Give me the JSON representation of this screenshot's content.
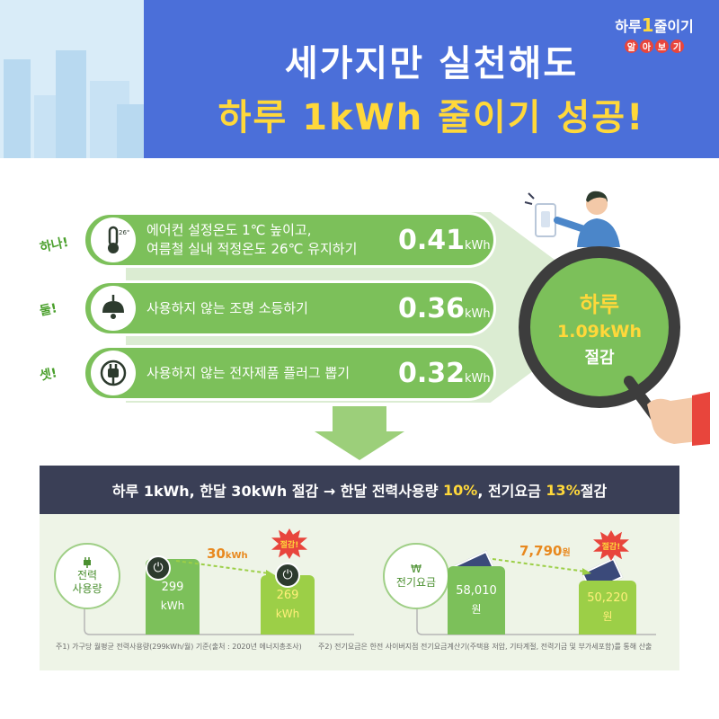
{
  "header": {
    "title_line1": "세가지만 실천해도",
    "title_line2": "하루 1kWh 줄이기 성공!",
    "logo": {
      "text_a": "하루",
      "text_one": "1",
      "text_b": "줄이기",
      "sub": [
        "알",
        "아",
        "보",
        "기"
      ]
    }
  },
  "tips": [
    {
      "ordinal": "하나!",
      "icon": "thermometer-icon",
      "icon_label": "26℃",
      "text_line1": "에어컨 설정온도 1℃ 높이고,",
      "text_line2": "여름철 실내 적정온도 26℃ 유지하기",
      "value": "0.41",
      "unit": "kWh"
    },
    {
      "ordinal": "둘!",
      "icon": "lamp-icon",
      "text_line1": "사용하지 않는 조명 소등하기",
      "text_line2": "",
      "value": "0.36",
      "unit": "kWh"
    },
    {
      "ordinal": "셋!",
      "icon": "plug-icon",
      "text_line1": "사용하지 않는 전자제품 플러그 뽑기",
      "text_line2": "",
      "value": "0.32",
      "unit": "kWh"
    }
  ],
  "magnifier": {
    "line1": "하루",
    "line2": "1.09kWh",
    "line3": "절감"
  },
  "summary": {
    "part1": "하루 1kWh, 한달 30kWh 절감 → 한달 전력사용량 ",
    "hl1": "10%",
    "part2": ", 전기요금 ",
    "hl2": "13%",
    "part3": " 절감"
  },
  "comparison": {
    "power": {
      "label_line1": "전력",
      "label_line2": "사용량",
      "icon": "plug-icon",
      "before": {
        "value": "299",
        "unit": "kWh"
      },
      "after": {
        "value": "269",
        "unit": "kWh"
      },
      "diff": "30",
      "diff_unit": "kWh",
      "burst": "절감!"
    },
    "bill": {
      "label": "전기요금",
      "icon": "won-icon",
      "icon_glyph": "₩",
      "before": {
        "value": "58,010",
        "unit": "원"
      },
      "after": {
        "value": "50,220",
        "unit": "원"
      },
      "diff": "7,790",
      "diff_unit": "원",
      "burst": "절감!"
    }
  },
  "footnotes": {
    "note1": "주1) 가구당 월평균 전력사용량(299kWh/월) 기준(출처 : 2020년 에너지총조사)",
    "note2": "주2) 전기요금은 한전 사이버지점 전기요금계산기(주택용 저압, 기타계절, 전력기금 및 부가세포함)를 통해 산출"
  },
  "colors": {
    "banner": "#4b6fd9",
    "green": "#7cc05a",
    "yellow": "#ffd83a",
    "dark": "#3a3f56"
  }
}
